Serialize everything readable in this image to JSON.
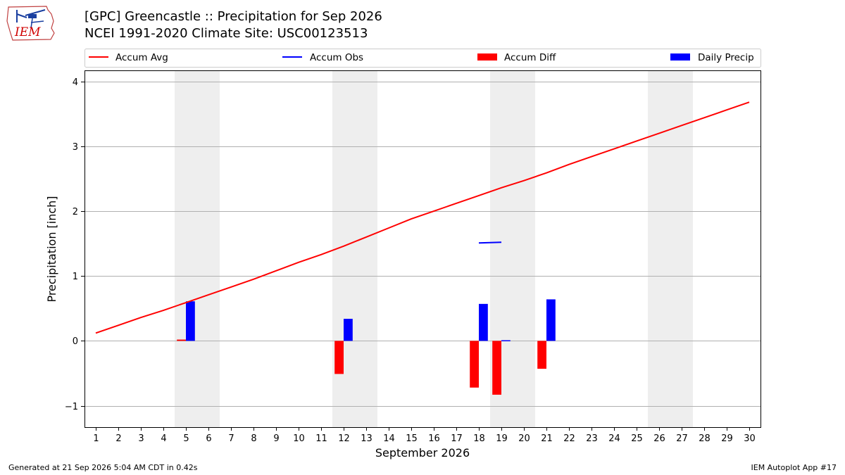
{
  "title_line1": "[GPC] Greencastle :: Precipitation for Sep 2026",
  "title_line2": "NCEI 1991-2020 Climate Site: USC00123513",
  "footer_left": "Generated at 21 Sep 2026 5:04 AM CDT in 0.42s",
  "footer_right": "IEM Autoplot App #17",
  "logo_text": "IEM",
  "colors": {
    "accum_avg": "#ff0000",
    "accum_obs": "#0000ff",
    "accum_diff": "#ff0000",
    "daily_precip": "#0000ff",
    "weekend_shade": "#eeeeee",
    "grid": "#b0b0b0"
  },
  "chart_data": {
    "type": "bar",
    "xlabel": "September 2026",
    "ylabel": "Precipitation [inch]",
    "xlim": [
      0.5,
      30.5
    ],
    "ylim": [
      -1.33,
      4.17
    ],
    "x_ticks": [
      1,
      2,
      3,
      4,
      5,
      6,
      7,
      8,
      9,
      10,
      11,
      12,
      13,
      14,
      15,
      16,
      17,
      18,
      19,
      20,
      21,
      22,
      23,
      24,
      25,
      26,
      27,
      28,
      29,
      30
    ],
    "y_ticks": [
      -1,
      0,
      1,
      2,
      3,
      4
    ],
    "y_tick_labels": [
      "−1",
      "0",
      "1",
      "2",
      "3",
      "4"
    ],
    "grid": "horizontal",
    "legend_position": "top",
    "weekend_shading": [
      [
        5,
        6
      ],
      [
        12,
        13
      ],
      [
        19,
        20
      ],
      [
        26,
        27
      ]
    ],
    "series": [
      {
        "name": "Accum Avg",
        "kind": "line",
        "x": [
          1,
          2,
          3,
          4,
          5,
          6,
          7,
          8,
          9,
          10,
          11,
          12,
          13,
          14,
          15,
          16,
          17,
          18,
          19,
          20,
          21,
          22,
          23,
          24,
          25,
          26,
          27,
          28,
          29,
          30
        ],
        "values": [
          0.12,
          0.24,
          0.36,
          0.47,
          0.59,
          0.71,
          0.83,
          0.95,
          1.08,
          1.21,
          1.33,
          1.46,
          1.6,
          1.74,
          1.88,
          2.0,
          2.12,
          2.24,
          2.36,
          2.47,
          2.59,
          2.72,
          2.84,
          2.96,
          3.08,
          3.2,
          3.32,
          3.44,
          3.56,
          3.68
        ]
      },
      {
        "name": "Accum Obs",
        "kind": "line",
        "x": [
          18,
          19
        ],
        "values": [
          1.51,
          1.52
        ]
      },
      {
        "name": "Accum Diff",
        "kind": "bar",
        "x": [
          5,
          12,
          18,
          19,
          21
        ],
        "values": [
          0.02,
          -0.51,
          -0.72,
          -0.83,
          -0.43
        ]
      },
      {
        "name": "Daily Precip",
        "kind": "bar",
        "x": [
          5,
          12,
          18,
          19,
          21
        ],
        "values": [
          0.61,
          0.34,
          0.57,
          0.01,
          0.64
        ]
      }
    ]
  }
}
